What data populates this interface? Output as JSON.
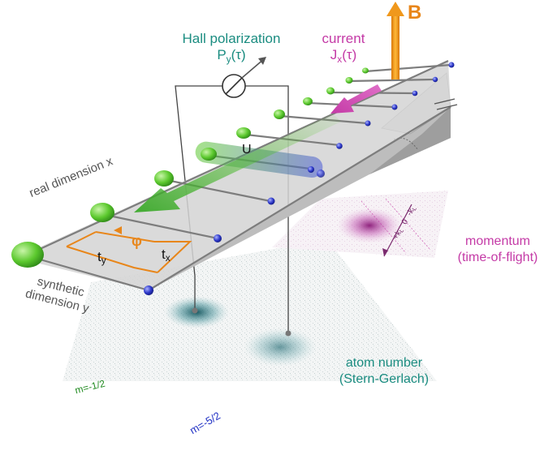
{
  "labels": {
    "hall_title": "Hall polarization",
    "hall_symbol": "P",
    "hall_sub": "y",
    "hall_arg": "(τ)",
    "current_title": "current",
    "current_symbol": "J",
    "current_sub": "x",
    "current_arg": "(τ)",
    "field": "B",
    "interaction": "U",
    "phase": "φ",
    "tunnel_y": "t",
    "tunnel_y_sub": "y",
    "tunnel_x": "t",
    "tunnel_x_sub": "x",
    "real_dimension": "real dimension x",
    "synthetic_line1": "synthetic",
    "synthetic_line2": "dimension y",
    "momentum_line1": "momentum",
    "momentum_line2": "(time-of-flight)",
    "momentum_ticks": "+k",
    "momentum_ticks_sub": "L",
    "momentum_zero": "0",
    "momentum_neg": "-k",
    "momentum_neg_sub": "L",
    "atom_line1": "atom number",
    "atom_line2": "(Stern-Gerlach)",
    "spin_up": "m=-1/2",
    "spin_down": "m=-5/2"
  },
  "colors": {
    "teal": "#1a8c80",
    "magenta": "#c43aa6",
    "orange": "#e8861a",
    "green_site": "#5cc92e",
    "blue_site": "#2b36c8",
    "ladder_fill": "#cfcfcf"
  }
}
